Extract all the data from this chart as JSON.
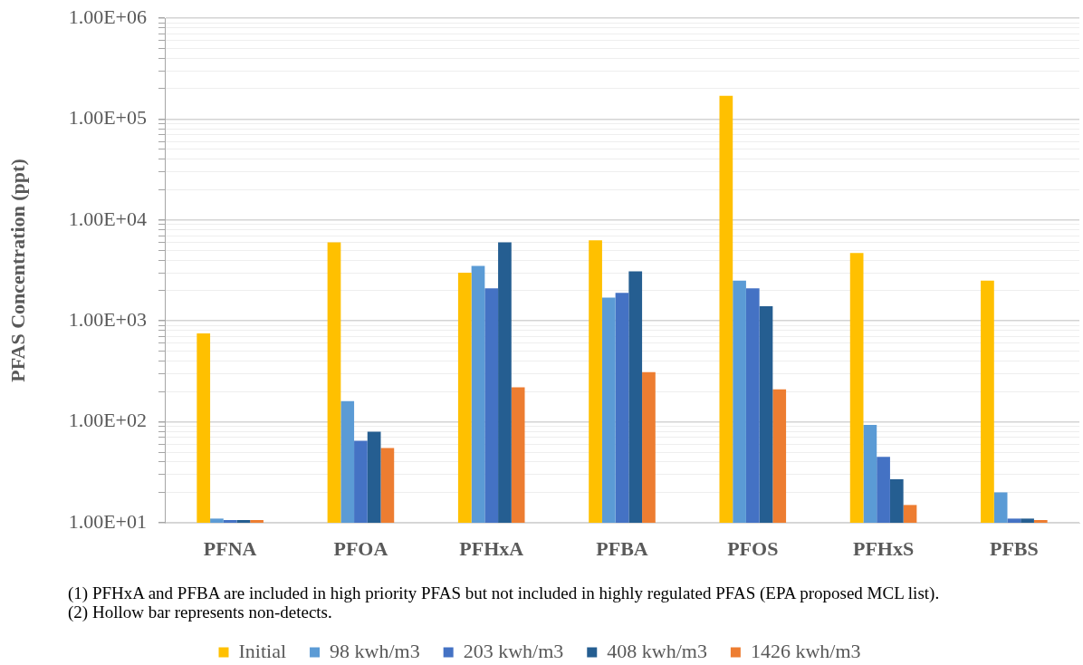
{
  "chart_data": {
    "type": "bar",
    "ylabel": "PFAS Concentration (ppt)",
    "categories": [
      "PFNA",
      "PFOA",
      "PFHxA",
      "PFBA",
      "PFOS",
      "PFHxS",
      "PFBS"
    ],
    "series": [
      {
        "name": "Initial",
        "color": "#ffc000",
        "values": [
          750,
          6000,
          3000,
          6300,
          170000,
          4700,
          2500
        ]
      },
      {
        "name": "98 kwh/m3",
        "color": "#5b9bd5",
        "values": [
          11,
          160,
          3500,
          1700,
          2500,
          93,
          20
        ]
      },
      {
        "name": "203 kwh/m3",
        "color": "#4472c4",
        "values": [
          10,
          65,
          2100,
          1900,
          2100,
          45,
          11
        ]
      },
      {
        "name": "408 kwh/m3",
        "color": "#255e91",
        "values": [
          10,
          80,
          6000,
          3100,
          1400,
          27,
          11
        ]
      },
      {
        "name": "1426 kwh/m3",
        "color": "#ed7d31",
        "values": [
          10,
          55,
          220,
          310,
          210,
          15,
          10
        ]
      }
    ],
    "log": true,
    "ylim": [
      10,
      1000000
    ],
    "yticks": [
      {
        "value": 10,
        "label": "1.00E+01"
      },
      {
        "value": 20,
        "label": null
      },
      {
        "value": 30,
        "label": null
      },
      {
        "value": 40,
        "label": null
      },
      {
        "value": 50,
        "label": null
      },
      {
        "value": 60,
        "label": null
      },
      {
        "value": 70,
        "label": null
      },
      {
        "value": 80,
        "label": null
      },
      {
        "value": 90,
        "label": null
      },
      {
        "value": 100,
        "label": "1.00E+02"
      },
      {
        "value": 200,
        "label": null
      },
      {
        "value": 300,
        "label": null
      },
      {
        "value": 400,
        "label": null
      },
      {
        "value": 500,
        "label": null
      },
      {
        "value": 600,
        "label": null
      },
      {
        "value": 700,
        "label": null
      },
      {
        "value": 800,
        "label": null
      },
      {
        "value": 900,
        "label": null
      },
      {
        "value": 1000,
        "label": "1.00E+03"
      },
      {
        "value": 2000,
        "label": null
      },
      {
        "value": 3000,
        "label": null
      },
      {
        "value": 4000,
        "label": null
      },
      {
        "value": 5000,
        "label": null
      },
      {
        "value": 6000,
        "label": null
      },
      {
        "value": 7000,
        "label": null
      },
      {
        "value": 8000,
        "label": null
      },
      {
        "value": 9000,
        "label": null
      },
      {
        "value": 10000,
        "label": "1.00E+04"
      },
      {
        "value": 20000,
        "label": null
      },
      {
        "value": 30000,
        "label": null
      },
      {
        "value": 40000,
        "label": null
      },
      {
        "value": 50000,
        "label": null
      },
      {
        "value": 60000,
        "label": null
      },
      {
        "value": 70000,
        "label": null
      },
      {
        "value": 80000,
        "label": null
      },
      {
        "value": 90000,
        "label": null
      },
      {
        "value": 100000,
        "label": "1.00E+05"
      },
      {
        "value": 200000,
        "label": null
      },
      {
        "value": 300000,
        "label": null
      },
      {
        "value": 400000,
        "label": null
      },
      {
        "value": 500000,
        "label": null
      },
      {
        "value": 600000,
        "label": null
      },
      {
        "value": 700000,
        "label": null
      },
      {
        "value": 800000,
        "label": null
      },
      {
        "value": 900000,
        "label": null
      },
      {
        "value": 1000000,
        "label": "1.00E+06"
      }
    ],
    "grid": "y",
    "legend": "bottom",
    "annotations": [
      "(1) PFHxA and PFBA are included in high priority PFAS but not included in highly regulated PFAS (EPA proposed MCL list).",
      "(2) Hollow bar represents non-detects."
    ]
  }
}
